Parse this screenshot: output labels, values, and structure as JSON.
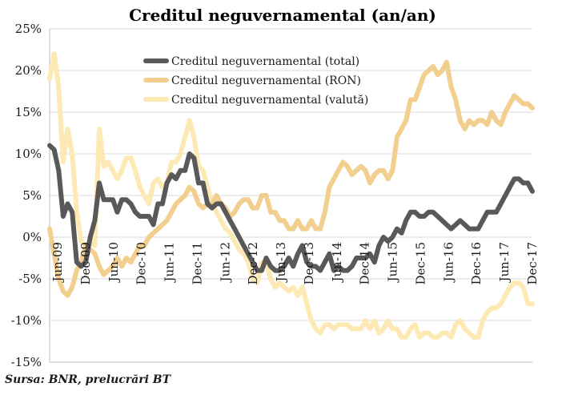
{
  "chart_data": {
    "type": "line",
    "title": "Creditul neguvernamental (an/an)",
    "source": "Sursa: BNR, prelucrări BT",
    "x_tick_labels": [
      "Jun-09",
      "Dec-09",
      "Jun-10",
      "Dec-10",
      "Jun-11",
      "Dec-11",
      "Jun-12",
      "Dec-12",
      "Jun-13",
      "Dec-13",
      "Jun-14",
      "Dec-14",
      "Jun-15",
      "Dec-15",
      "Jun-16",
      "Dec-16",
      "Jun-17",
      "Dec-17"
    ],
    "y_tick_labels": [
      "25%",
      "20%",
      "15%",
      "10%",
      "5%",
      "0%",
      "-5%",
      "-10%",
      "-15%"
    ],
    "ylim": [
      -15,
      25
    ],
    "grid": true,
    "legend_position": "top-center",
    "series": [
      {
        "name": "Creditul neguvernamental (total)",
        "color": "#595959",
        "values": [
          11,
          10.5,
          8,
          2.5,
          4,
          3,
          -3,
          -3.5,
          -3,
          0,
          2,
          6.5,
          4.5,
          4.5,
          4.5,
          3,
          4.5,
          4.5,
          4,
          3,
          2.5,
          2.5,
          2.5,
          1.5,
          4,
          4,
          6.5,
          7.5,
          7,
          8,
          8,
          10,
          9.5,
          6.5,
          6.5,
          4,
          3.5,
          4,
          4,
          3,
          2,
          1,
          0,
          -1,
          -2,
          -3,
          -4,
          -4,
          -2.5,
          -3.5,
          -4,
          -4,
          -3.5,
          -2.5,
          -3.5,
          -2,
          -1,
          -3,
          -3.5,
          -3.5,
          -4,
          -3,
          -2,
          -4,
          -3.5,
          -4,
          -4,
          -3.5,
          -2.5,
          -2.5,
          -2.5,
          -2,
          -3,
          -1,
          0,
          -0.5,
          0,
          1,
          0.5,
          2,
          3,
          3,
          2.5,
          2.5,
          3,
          3,
          2.5,
          2,
          1.5,
          1,
          1.5,
          2,
          1.5,
          1,
          1,
          1,
          2,
          3,
          3,
          3,
          4,
          5,
          6,
          7,
          7,
          6.5,
          6.5,
          5.5
        ],
        "y_start": 11
      },
      {
        "name": "Creditul neguvernamental (RON)",
        "color": "#f2cf8f",
        "values": [
          1,
          -2,
          -5,
          -6.5,
          -7,
          -6,
          -4,
          -3,
          -1,
          -1.5,
          -2,
          -3.5,
          -4.5,
          -4,
          -3.5,
          -2.5,
          -3.5,
          -2.5,
          -3,
          -2,
          -1,
          -1,
          0,
          0.5,
          1,
          1.5,
          2,
          3,
          4,
          4.5,
          5,
          6,
          5.5,
          4,
          3.5,
          4,
          4,
          5,
          4,
          3.5,
          2.5,
          3,
          4,
          4.5,
          4.5,
          3.5,
          3.5,
          5,
          5,
          3,
          3,
          2,
          2,
          1,
          1,
          2,
          1,
          1,
          2,
          1,
          1,
          3,
          6,
          7,
          8,
          9,
          8.5,
          7.5,
          8,
          8.5,
          8,
          6.5,
          7.5,
          8,
          8,
          7,
          8,
          12,
          13,
          14,
          16.5,
          16.5,
          18,
          19.5,
          20,
          20.5,
          19.5,
          20,
          21,
          18,
          16.5,
          14,
          13,
          14,
          13.5,
          14,
          14,
          13.5,
          15,
          14,
          13.5,
          15,
          16,
          17,
          16.5,
          16,
          16,
          15.5
        ]
      },
      {
        "name": "Creditul neguvernamental (valută)",
        "color": "#fde9b3",
        "values": [
          19,
          22,
          18,
          9,
          13,
          10,
          3,
          -0.5,
          -1,
          -0.5,
          -1,
          13,
          8.5,
          9,
          8,
          7,
          8,
          9.5,
          9.5,
          8,
          6,
          5,
          4,
          6.5,
          7,
          6,
          6.5,
          9,
          9,
          10,
          12,
          14,
          12,
          8.5,
          8,
          6,
          4,
          3,
          2,
          1,
          0.5,
          -0.5,
          -1.5,
          -2,
          -3,
          -5,
          -5.5,
          -3,
          -3,
          -5,
          -6,
          -5.5,
          -6,
          -6.5,
          -6,
          -7,
          -6,
          -8,
          -10,
          -11,
          -11.5,
          -10.5,
          -10.5,
          -11,
          -10.5,
          -10.5,
          -10.5,
          -11,
          -11,
          -11,
          -10,
          -11,
          -10,
          -11.5,
          -11,
          -10,
          -11,
          -11,
          -12,
          -12,
          -11,
          -10.5,
          -12,
          -11.5,
          -11.5,
          -12,
          -12,
          -11.5,
          -11.5,
          -12,
          -10.5,
          -10,
          -11,
          -11.5,
          -12,
          -12,
          -10,
          -9,
          -8.5,
          -8.5,
          -8,
          -7,
          -6,
          -5.5,
          -5.5,
          -6,
          -8,
          -8
        ]
      }
    ]
  }
}
